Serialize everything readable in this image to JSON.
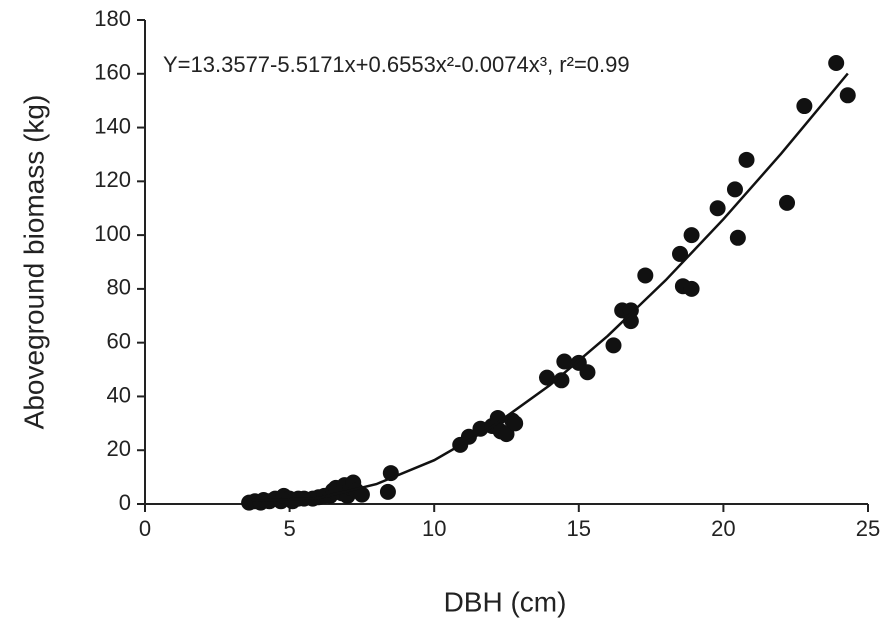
{
  "chart_data": {
    "type": "scatter",
    "annotation": "Y=13.3577-5.5171x+0.6553x²-0.0074x³, r²=0.99",
    "x_label": "DBH (cm)",
    "y_label": "Aboveground biomass (kg)",
    "xlim": [
      0,
      25
    ],
    "xticks": [
      0,
      5,
      10,
      15,
      20,
      25
    ],
    "ylim": [
      0,
      180
    ],
    "yticks": [
      0,
      20,
      40,
      60,
      80,
      100,
      120,
      140,
      160,
      180
    ],
    "color": "#111111",
    "x": [
      3.6,
      3.8,
      4.0,
      4.1,
      4.3,
      4.5,
      4.7,
      4.8,
      5.0,
      5.1,
      5.3,
      5.5,
      5.8,
      6.0,
      6.2,
      6.4,
      6.5,
      6.6,
      6.8,
      6.9,
      7.0,
      7.1,
      7.2,
      7.3,
      7.5,
      8.4,
      8.5,
      10.9,
      11.2,
      11.6,
      12.0,
      12.2,
      12.3,
      12.5,
      12.7,
      12.8,
      13.9,
      14.4,
      14.5,
      15.0,
      15.3,
      16.2,
      16.5,
      16.8,
      16.8,
      17.3,
      18.5,
      18.6,
      18.9,
      18.9,
      19.8,
      20.4,
      20.5,
      20.8,
      22.2,
      22.8,
      23.9,
      24.3
    ],
    "values": [
      0.5,
      1,
      0.5,
      1.5,
      1,
      2,
      1,
      3,
      2,
      1,
      2,
      2,
      2,
      2.5,
      3,
      3,
      5,
      6,
      4,
      7,
      3,
      6,
      8,
      5,
      3.5,
      4.5,
      11.5,
      22,
      25,
      28,
      29,
      32,
      27,
      26,
      31,
      30,
      47,
      46,
      53,
      52.5,
      49,
      59,
      72,
      72,
      68,
      85,
      93,
      81,
      80,
      100,
      110,
      117,
      99,
      128,
      112,
      148,
      164,
      152
    ],
    "fit": {
      "x": [
        3.7,
        4,
        6,
        8,
        10,
        12,
        14,
        16,
        18,
        20,
        22,
        24.3
      ],
      "values": [
        1.5,
        1.3,
        2.2,
        7.4,
        16.3,
        28.7,
        44.2,
        62.5,
        83.2,
        105.9,
        130.3,
        160.1
      ]
    }
  }
}
